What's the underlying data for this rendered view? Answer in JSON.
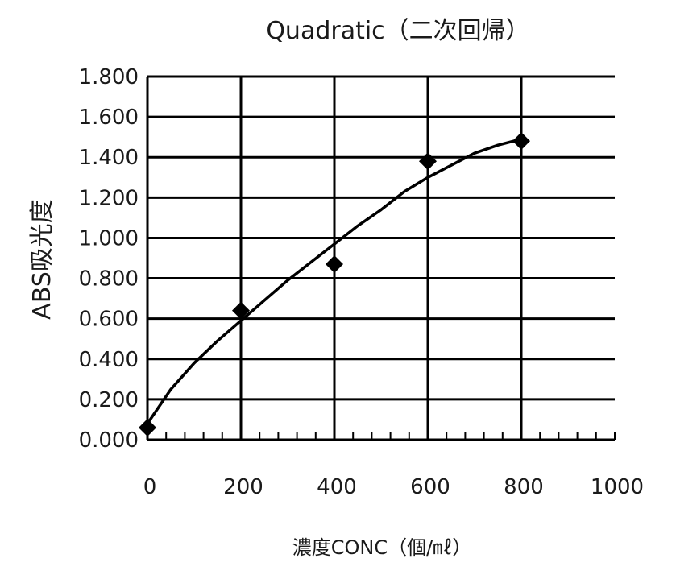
{
  "chart_data": {
    "type": "scatter",
    "title": "Quadratic（二次回帰）",
    "xlabel": "濃度CONC（個/㎖）",
    "ylabel": "ABS吸光度",
    "xlim": [
      0,
      1000
    ],
    "ylim": [
      0,
      1.8
    ],
    "x_ticks": [
      "0",
      "200",
      "400",
      "600",
      "800",
      "1000"
    ],
    "y_ticks": [
      "0.000",
      "0.200",
      "0.400",
      "0.600",
      "0.800",
      "1.000",
      "1.200",
      "1.400",
      "1.600",
      "1.800"
    ],
    "grid": {
      "x": true,
      "y": true
    },
    "points": {
      "x": [
        0,
        200,
        400,
        600,
        800
      ],
      "y": [
        0.06,
        0.64,
        0.87,
        1.38,
        1.48
      ]
    },
    "fit": {
      "type": "quadratic",
      "x": [
        0,
        50,
        100,
        150,
        200,
        250,
        300,
        350,
        400,
        450,
        500,
        550,
        600,
        650,
        700,
        750,
        800
      ],
      "y": [
        0.08,
        0.25,
        0.38,
        0.49,
        0.59,
        0.69,
        0.79,
        0.88,
        0.97,
        1.06,
        1.14,
        1.23,
        1.3,
        1.36,
        1.42,
        1.46,
        1.49
      ]
    }
  }
}
